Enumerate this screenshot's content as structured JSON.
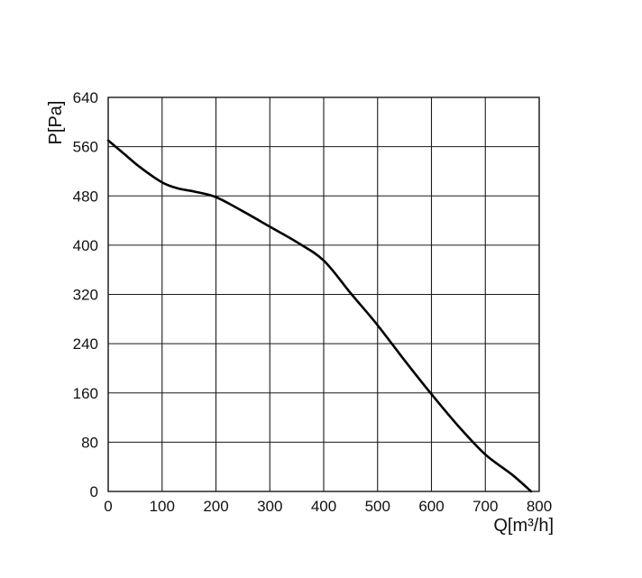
{
  "chart_data": {
    "type": "line",
    "title": "",
    "xlabel": "Q[m³/h]",
    "ylabel": "P[Pa]",
    "xlim": [
      0,
      800
    ],
    "ylim": [
      0,
      640
    ],
    "xticks": [
      0,
      100,
      200,
      300,
      400,
      500,
      600,
      700,
      800
    ],
    "yticks": [
      0,
      80,
      160,
      240,
      320,
      400,
      480,
      560,
      640
    ],
    "xtick_labels": [
      "0",
      "100",
      "200",
      "300",
      "400",
      "500",
      "600",
      "700",
      "800"
    ],
    "ytick_labels": [
      "0",
      "80",
      "160",
      "240",
      "320",
      "400",
      "480",
      "560",
      "640"
    ],
    "grid": true,
    "series": [
      {
        "color": "#000000",
        "x": [
          0,
          30,
          60,
          100,
          130,
          160,
          200,
          250,
          300,
          350,
          400,
          450,
          500,
          550,
          600,
          650,
          700,
          750,
          785
        ],
        "y": [
          570,
          548,
          526,
          502,
          492,
          487,
          478,
          455,
          430,
          405,
          375,
          322,
          270,
          213,
          158,
          106,
          60,
          27,
          0
        ]
      }
    ]
  }
}
